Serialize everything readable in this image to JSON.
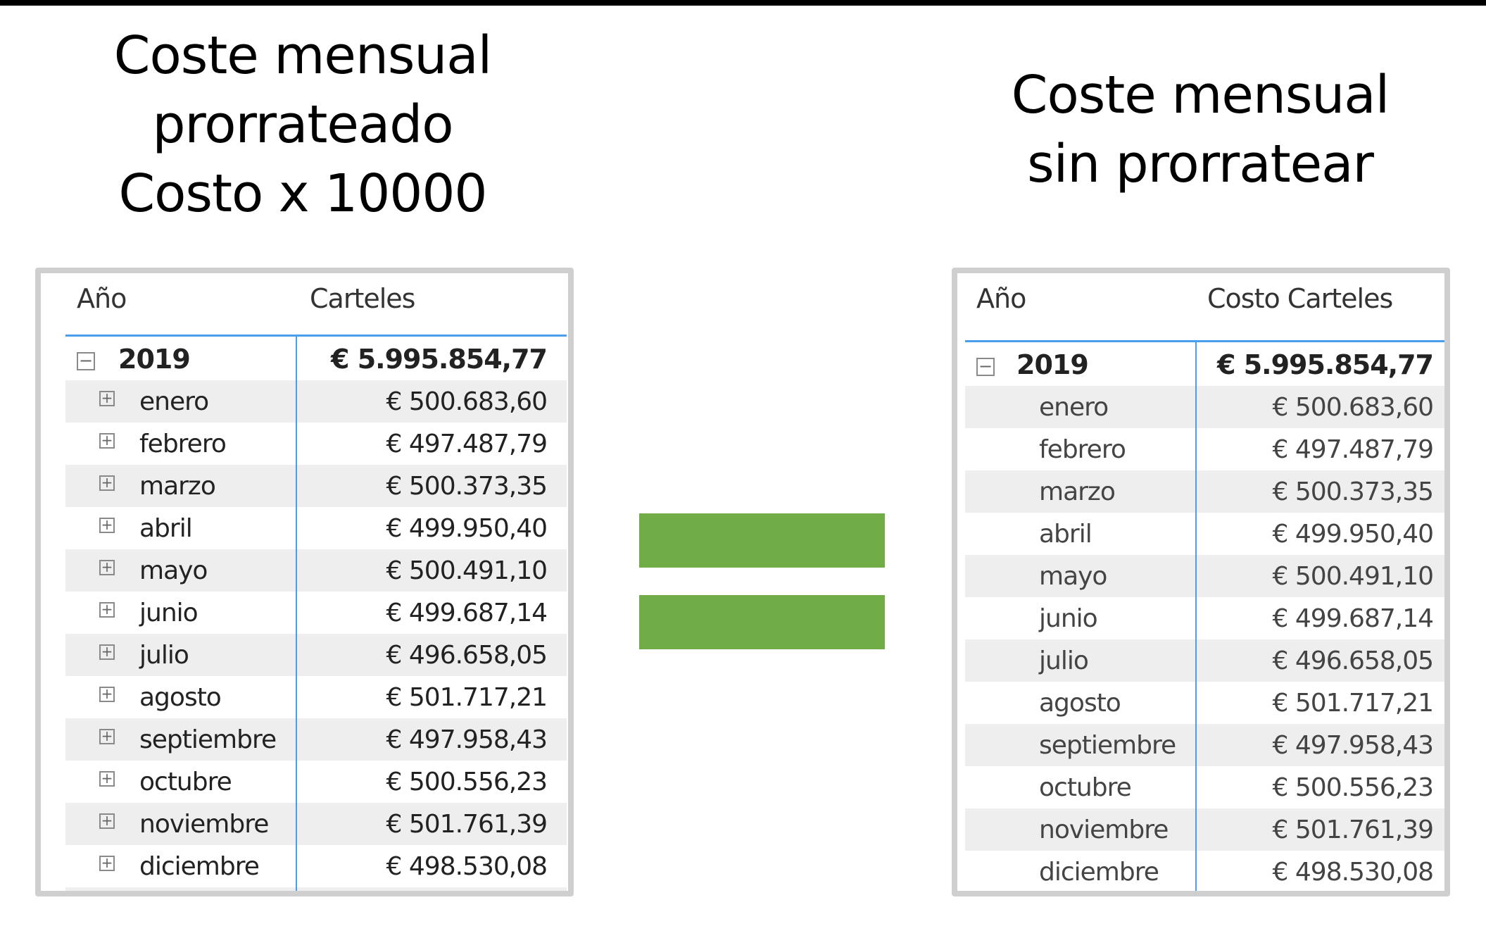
{
  "left": {
    "title_lines": [
      "Coste mensual",
      "prorrateado",
      "Costo x 10000"
    ],
    "table": {
      "headers": [
        "Año",
        "Carteles"
      ],
      "total": {
        "label": "2019",
        "value": "€ 5.995.854,77",
        "toggle_icon": "collapse-minus-icon"
      },
      "rows": [
        {
          "label": "enero",
          "value": "€ 500.683,60"
        },
        {
          "label": "febrero",
          "value": "€ 497.487,79"
        },
        {
          "label": "marzo",
          "value": "€ 500.373,35"
        },
        {
          "label": "abril",
          "value": "€ 499.950,40"
        },
        {
          "label": "mayo",
          "value": "€ 500.491,10"
        },
        {
          "label": "junio",
          "value": "€ 499.687,14"
        },
        {
          "label": "julio",
          "value": "€ 496.658,05"
        },
        {
          "label": "agosto",
          "value": "€ 501.717,21"
        },
        {
          "label": "septiembre",
          "value": "€ 497.958,43"
        },
        {
          "label": "octubre",
          "value": "€ 500.556,23"
        },
        {
          "label": "noviembre",
          "value": "€ 501.761,39"
        },
        {
          "label": "diciembre",
          "value": "€ 498.530,08"
        }
      ],
      "row_toggle_icon": "expand-plus-icon"
    }
  },
  "right": {
    "title_lines": [
      "Coste mensual",
      "sin prorratear"
    ],
    "table": {
      "headers": [
        "Año",
        "Costo Carteles"
      ],
      "total": {
        "label": "2019",
        "value": "€ 5.995.854,77",
        "toggle_icon": "collapse-minus-icon"
      },
      "rows": [
        {
          "label": "enero",
          "value": "€ 500.683,60"
        },
        {
          "label": "febrero",
          "value": "€ 497.487,79"
        },
        {
          "label": "marzo",
          "value": "€ 500.373,35"
        },
        {
          "label": "abril",
          "value": "€ 499.950,40"
        },
        {
          "label": "mayo",
          "value": "€ 500.491,10"
        },
        {
          "label": "junio",
          "value": "€ 499.687,14"
        },
        {
          "label": "julio",
          "value": "€ 496.658,05"
        },
        {
          "label": "agosto",
          "value": "€ 501.717,21"
        },
        {
          "label": "septiembre",
          "value": "€ 497.958,43"
        },
        {
          "label": "octubre",
          "value": "€ 500.556,23"
        },
        {
          "label": "noviembre",
          "value": "€ 501.761,39"
        },
        {
          "label": "diciembre",
          "value": "€ 498.530,08"
        }
      ]
    }
  },
  "symbols": {
    "toggle_minus": "−",
    "toggle_plus": "+",
    "equals_color": "#70ad47",
    "accent_line_color": "#4a9ef0"
  }
}
